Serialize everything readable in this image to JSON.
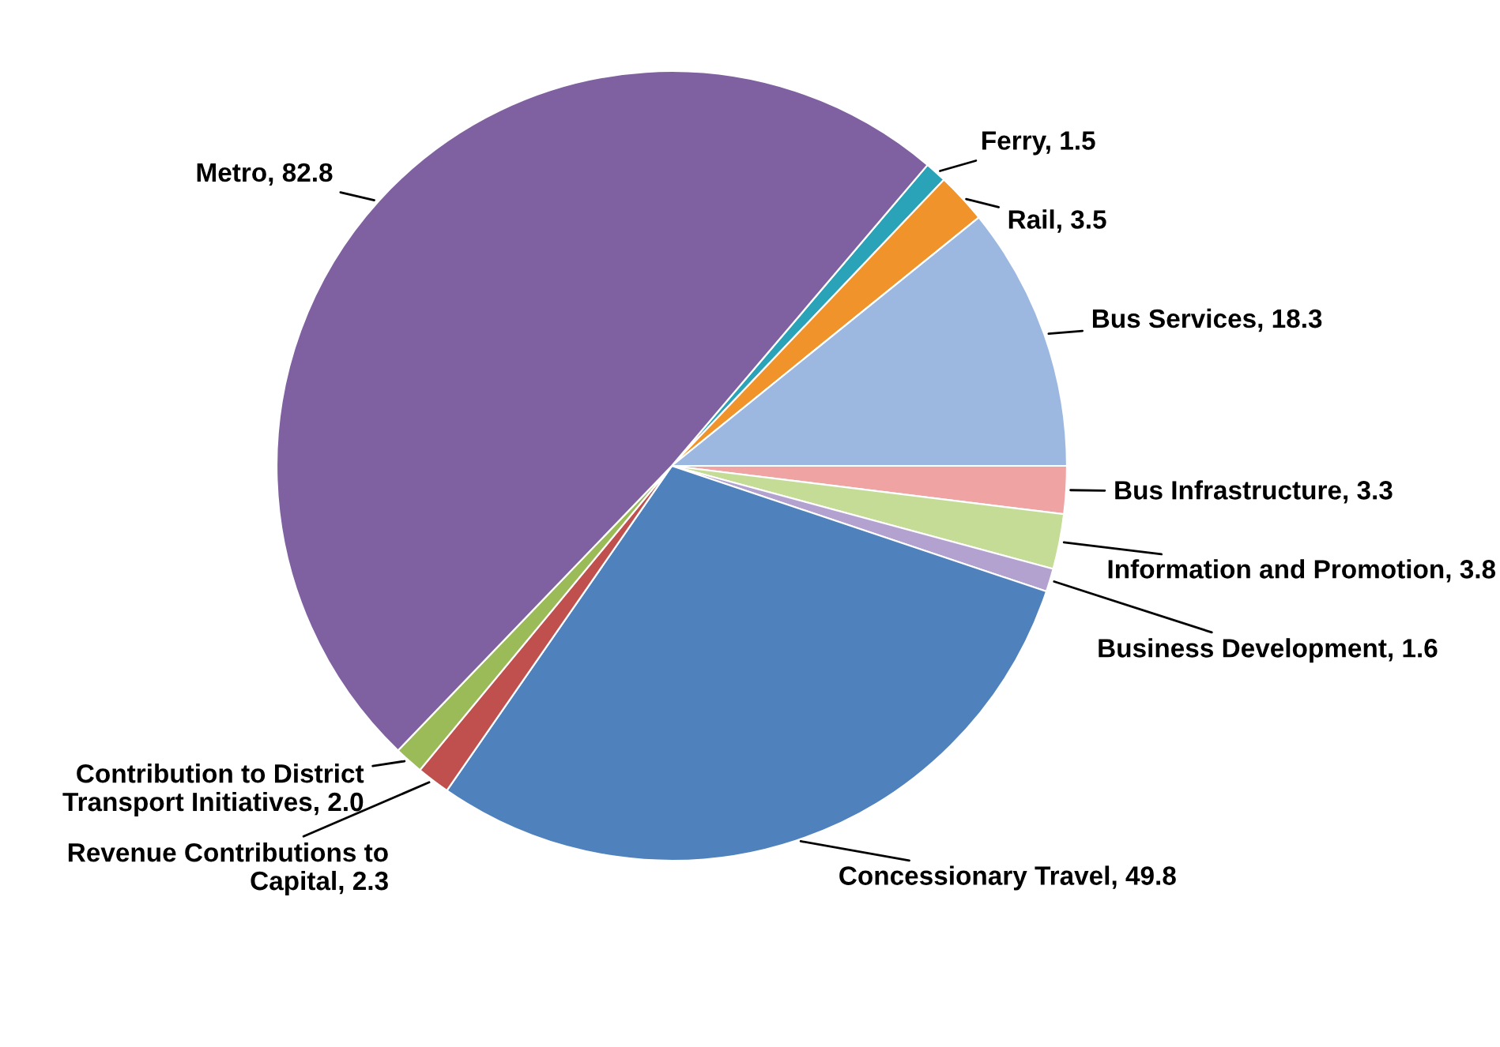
{
  "chart_data": {
    "type": "pie",
    "categories": [
      "Ferry",
      "Rail",
      "Bus Services",
      "Bus Infrastructure",
      "Information and Promotion",
      "Business Development",
      "Concessionary Travel",
      "Revenue Contributions to Capital",
      "Contribution to District Transport Initiatives",
      "Metro"
    ],
    "values": [
      1.5,
      3.5,
      18.3,
      3.3,
      3.8,
      1.6,
      49.8,
      2.3,
      2.0,
      82.8
    ],
    "colors": [
      "#2aa3b8",
      "#f0932b",
      "#9db8e0",
      "#f0a3a3",
      "#c5dc96",
      "#b3a2cf",
      "#4f81bd",
      "#c0504d",
      "#9bbb59",
      "#7f60a0"
    ],
    "value_labels": [
      "1.5",
      "3.5",
      "18.3",
      "3.3",
      "3.8",
      "1.6",
      "49.8",
      "2.3",
      "2.0",
      "82.8"
    ]
  }
}
